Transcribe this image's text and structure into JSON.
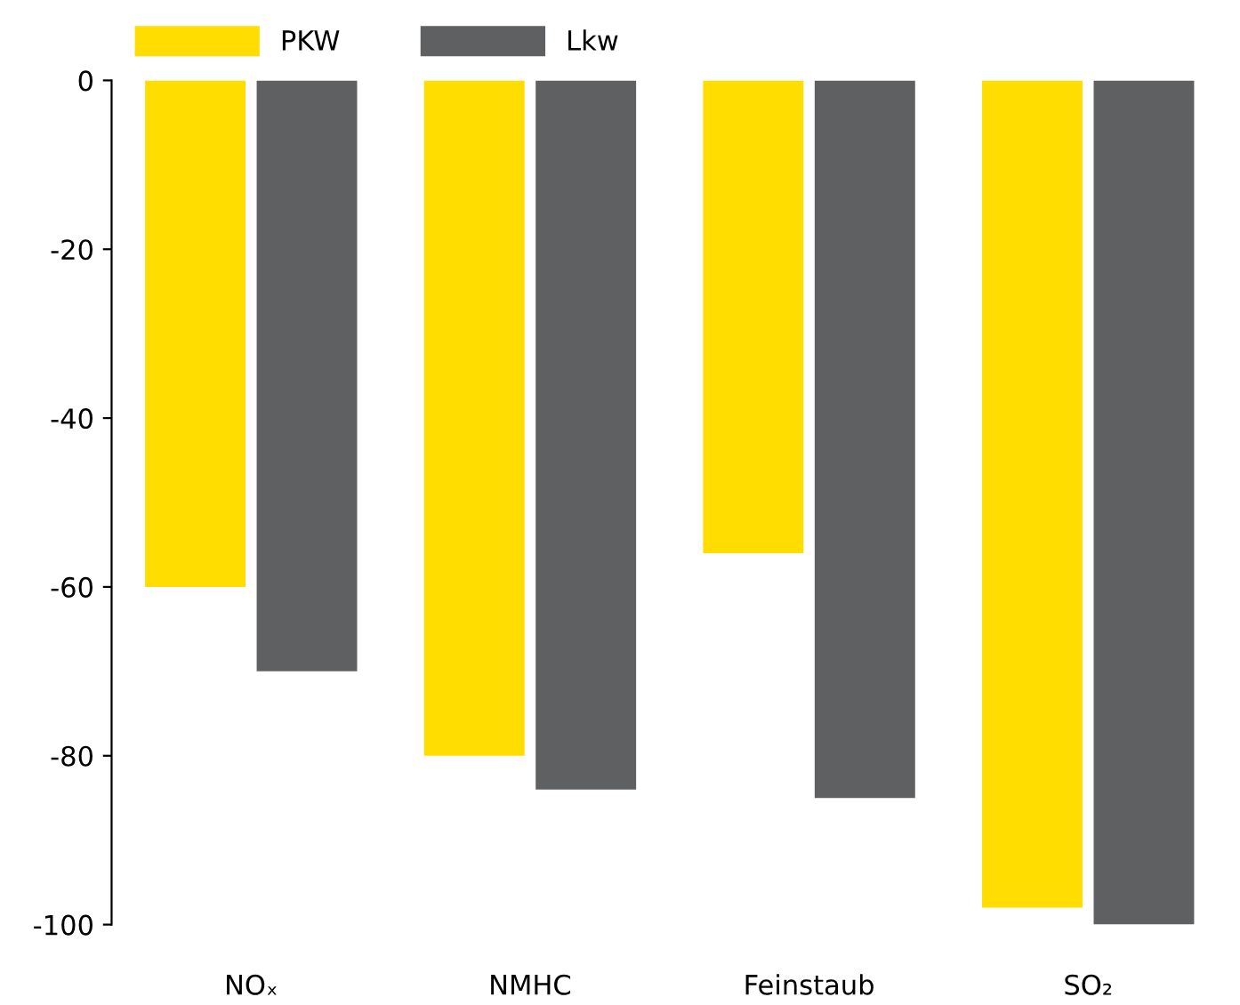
{
  "chart_data": {
    "type": "bar",
    "categories": [
      "NOₓ",
      "NMHC",
      "Feinstaub",
      "SO₂"
    ],
    "series": [
      {
        "name": "PKW",
        "color": "#ffdd00",
        "values": [
          -60,
          -80,
          -56,
          -98
        ]
      },
      {
        "name": "Lkw",
        "color": "#5f6062",
        "values": [
          -70,
          -84,
          -85,
          -100
        ]
      }
    ],
    "ylim": [
      -100,
      0
    ],
    "yticks": [
      -100,
      -80,
      -60,
      -40,
      -20,
      0
    ],
    "grid": false,
    "legend": "top left"
  }
}
